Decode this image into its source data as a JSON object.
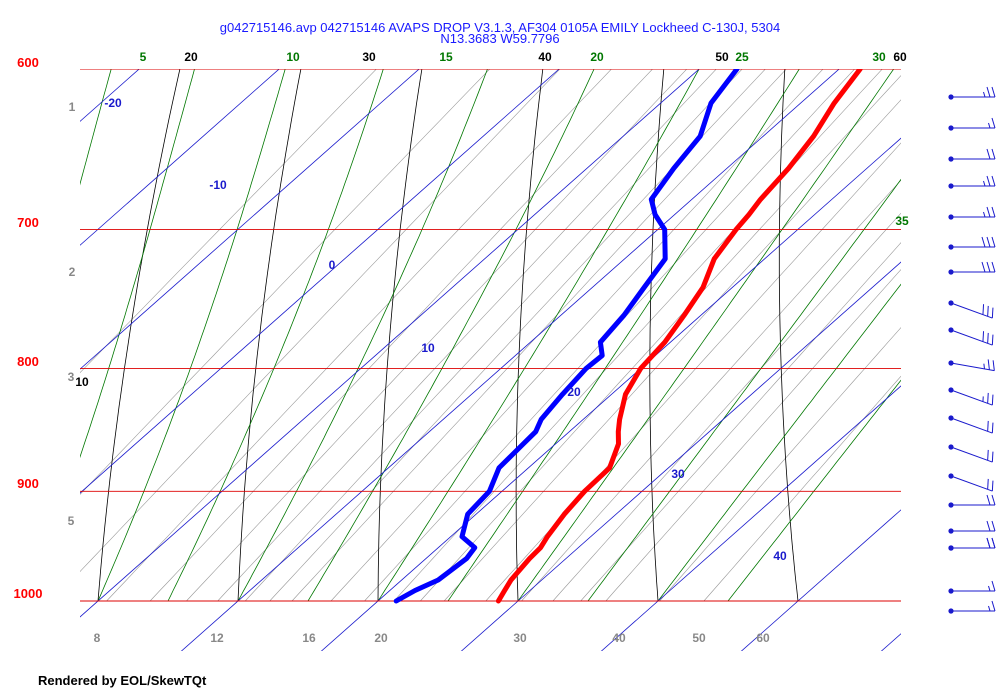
{
  "title": {
    "line1": "g042715146.avp 042715146 AVAPS DROP V3.1.3, AF304 0105A EMILY Lockheed C-130J, 5304",
    "line2": "N13.3683 W59.7796"
  },
  "footer": "Rendered by EOL/SkewTQt",
  "colors": {
    "temperature": "#ff0000",
    "dewpoint": "#0000ff",
    "isobar": "#dd0000",
    "isotherm": "#1a1acc",
    "dry_adiabat": "#000000",
    "moist_adiabat": "#007700",
    "mixing_ratio": "#888888",
    "wind_barb": "#1a1acc"
  },
  "chart_data": {
    "type": "skew-t",
    "pressure_axis": {
      "range": [
        1000,
        600
      ],
      "labels": [
        "600",
        "700",
        "800",
        "900",
        "1000"
      ],
      "log_scale": true
    },
    "isotherm_labels": [
      "-20",
      "-10",
      "0",
      "10",
      "20",
      "30",
      "40"
    ],
    "height_labels_km": [
      "1",
      "2",
      "3",
      "5"
    ],
    "mixing_ratio_labels": [
      "8",
      "12",
      "16",
      "20",
      "30",
      "40",
      "50",
      "60"
    ],
    "dry_adiabat_top_labels": [
      "20",
      "30",
      "40",
      "50",
      "60"
    ],
    "dry_adiabat_side_labels": [
      "10"
    ],
    "moist_adiabat_top_labels": [
      "5",
      "10",
      "15",
      "20",
      "25",
      "30",
      "35"
    ],
    "temperature_profile": {
      "p": [
        1000,
        990,
        980,
        960,
        950,
        940,
        920,
        900,
        880,
        860,
        850,
        840,
        820,
        800,
        780,
        760,
        740,
        720,
        700,
        690,
        680,
        660,
        640,
        620,
        600
      ],
      "t": [
        28.6,
        28.2,
        27.8,
        27.4,
        27.3,
        26.9,
        26.3,
        25.9,
        25.8,
        24.5,
        23.5,
        22.6,
        21.0,
        20.0,
        19.6,
        18.8,
        17.9,
        16.4,
        15.6,
        15.3,
        14.9,
        14.4,
        13.6,
        12.4,
        11.5
      ]
    },
    "dewpoint_profile": {
      "p": [
        1000,
        990,
        980,
        960,
        950,
        940,
        920,
        900,
        880,
        860,
        850,
        840,
        820,
        800,
        790,
        780,
        760,
        740,
        720,
        700,
        690,
        680,
        660,
        640,
        620,
        600
      ],
      "td": [
        21.3,
        21.8,
        22.6,
        22.9,
        22.6,
        20.8,
        19.4,
        19.1,
        17.9,
        17.7,
        17.6,
        17.0,
        16.5,
        16.1,
        16.2,
        15.0,
        14.5,
        13.7,
        12.9,
        10.5,
        8.6,
        7.1,
        6.2,
        5.5,
        3.6,
        2.7
      ]
    },
    "wind_barbs": {
      "p": [
        620,
        640,
        660,
        680,
        700,
        720,
        740,
        760,
        780,
        800,
        820,
        840,
        860,
        880,
        900,
        920,
        940,
        950,
        980,
        990
      ],
      "speed_kt": [
        25,
        15,
        20,
        25,
        25,
        30,
        30,
        30,
        30,
        25,
        25,
        20,
        20,
        20,
        20,
        20,
        20,
        20,
        15,
        15
      ],
      "dir_deg": [
        90,
        90,
        90,
        90,
        90,
        90,
        90,
        110,
        110,
        100,
        110,
        110,
        110,
        110,
        90,
        90,
        90,
        90,
        90,
        90
      ]
    }
  }
}
